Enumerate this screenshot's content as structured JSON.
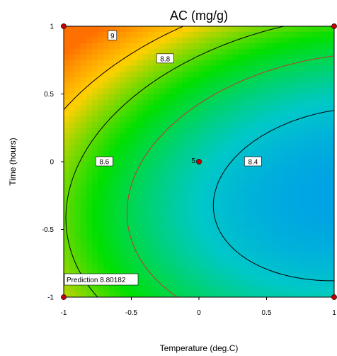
{
  "chart_data": {
    "type": "contour",
    "title": "AC (mg/g)",
    "xlabel": "Temperature (deg.C)",
    "ylabel": "Time (hours)",
    "xlim": [
      -1,
      1
    ],
    "ylim": [
      -1,
      1
    ],
    "x_ticks": [
      "-1",
      "-0.5",
      "0",
      "0.5",
      "1"
    ],
    "y_ticks": [
      "-1",
      "-0.5",
      "0",
      "0.5",
      "1"
    ],
    "contour_levels": [
      {
        "label": "9",
        "value": 9.0,
        "at": [
          -0.64,
          0.93
        ]
      },
      {
        "label": "8.8",
        "value": 8.8,
        "at": [
          -0.25,
          0.76
        ]
      },
      {
        "label": "8.6",
        "value": 8.6,
        "at": [
          -0.7,
          0.0
        ]
      },
      {
        "label": "8.4",
        "value": 8.4,
        "at": [
          0.4,
          0.0
        ]
      }
    ],
    "design_points": [
      {
        "x": -1,
        "y": 1
      },
      {
        "x": 1,
        "y": 1
      },
      {
        "x": -1,
        "y": -1
      },
      {
        "x": 1,
        "y": -1
      },
      {
        "x": 0,
        "y": 0
      }
    ],
    "center_point_label": "5",
    "prediction_text": "Prediction 8.80182",
    "colormap": [
      "#0080ff",
      "#00c8c8",
      "#00e000",
      "#ffd000",
      "#ff7000"
    ]
  }
}
